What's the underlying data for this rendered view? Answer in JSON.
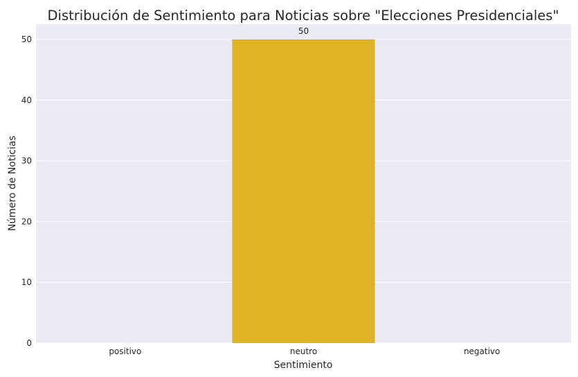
{
  "chart_data": {
    "type": "bar",
    "title": "Distribución de Sentimiento para Noticias sobre \"Elecciones Presidenciales\"",
    "xlabel": "Sentimiento",
    "ylabel": "Número de Noticias",
    "categories": [
      "positivo",
      "neutro",
      "negativo"
    ],
    "values": [
      0,
      50,
      0
    ],
    "data_labels": [
      "",
      "50",
      ""
    ],
    "ylim": [
      0,
      52.5
    ],
    "yticks": [
      0,
      10,
      20,
      30,
      40,
      50
    ],
    "grid": true,
    "legend": "none"
  },
  "colors": {
    "background": "#eaeaf2",
    "grid": "#ffffff",
    "bar": "#dfb326",
    "text": "#262626"
  }
}
